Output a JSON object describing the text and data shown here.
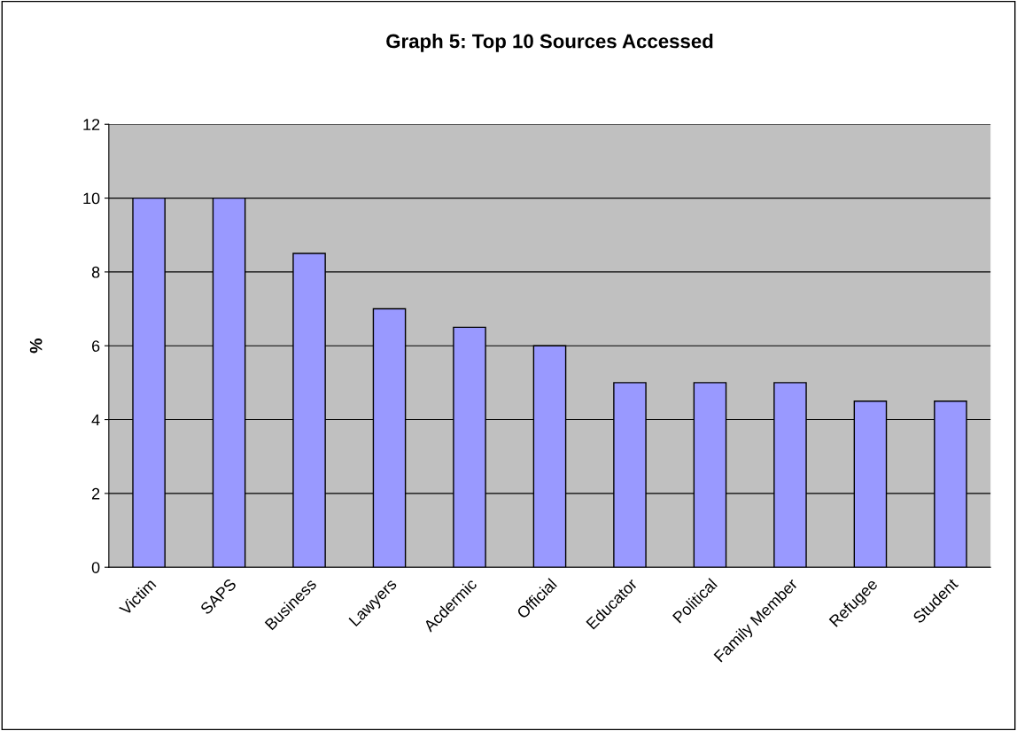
{
  "chart_data": {
    "type": "bar",
    "title": "Graph 5: Top 10 Sources Accessed",
    "ylabel": "%",
    "categories": [
      "Victim",
      "SAPS",
      "Business",
      "Lawyers",
      "Acdermic",
      "Official",
      "Educator",
      "Political",
      "Family Member",
      "Refugee",
      "Student"
    ],
    "values": [
      10,
      10,
      8.5,
      7,
      6.5,
      6,
      5,
      5,
      5,
      4.5,
      4.5
    ],
    "color": "#9999ff",
    "ylim": [
      0,
      12
    ],
    "yticks": [
      0,
      2,
      4,
      6,
      8,
      10,
      12
    ],
    "grid": "y"
  }
}
